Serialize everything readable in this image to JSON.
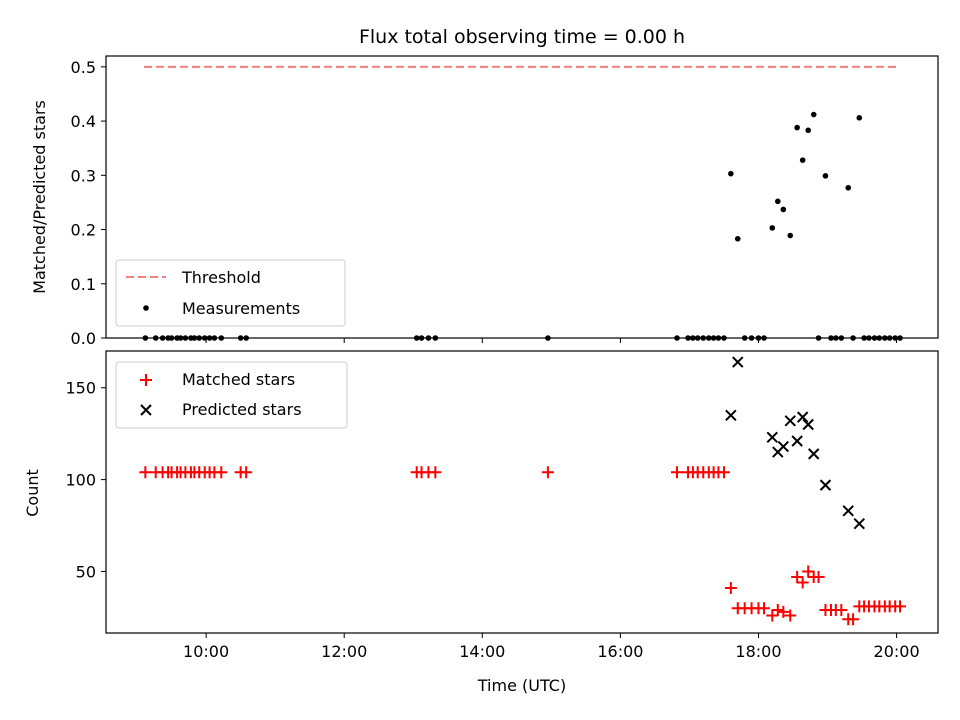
{
  "chart_data": {
    "type": "scatter",
    "title": "Flux total observing time = 0.00 h",
    "xlabel": "Time (UTC)",
    "xlim": [
      8.55,
      20.6
    ],
    "xticks": [
      {
        "value": 10,
        "label": "10:00"
      },
      {
        "value": 12,
        "label": "12:00"
      },
      {
        "value": 14,
        "label": "14:00"
      },
      {
        "value": 16,
        "label": "16:00"
      },
      {
        "value": 18,
        "label": "18:00"
      },
      {
        "value": 20,
        "label": "20:00"
      }
    ],
    "colors": {
      "threshold": "#f08080",
      "measurements": "#000000",
      "matched": "#ff0000",
      "predicted": "#000000"
    },
    "panels": [
      {
        "ylabel": "Matched/Predicted stars",
        "ylim": [
          0,
          0.52
        ],
        "yticks": [
          {
            "value": 0.0,
            "label": "0.0"
          },
          {
            "value": 0.1,
            "label": "0.1"
          },
          {
            "value": 0.2,
            "label": "0.2"
          },
          {
            "value": 0.3,
            "label": "0.3"
          },
          {
            "value": 0.4,
            "label": "0.4"
          },
          {
            "value": 0.5,
            "label": "0.5"
          }
        ],
        "legend_position": "lower-left",
        "series": [
          {
            "name": "Threshold",
            "kind": "dashed-line",
            "color": "#f08080",
            "x": [
              9.1,
              20.05
            ],
            "y": [
              0.5,
              0.5
            ]
          },
          {
            "name": "Measurements",
            "kind": "dot",
            "color": "#000000",
            "x": [
              9.12,
              9.27,
              9.37,
              9.45,
              9.5,
              9.58,
              9.63,
              9.7,
              9.78,
              9.83,
              9.9,
              9.98,
              10.05,
              10.12,
              10.22,
              10.5,
              10.58,
              13.05,
              13.12,
              13.22,
              13.32,
              14.95,
              16.82,
              16.98,
              17.05,
              17.12,
              17.2,
              17.28,
              17.35,
              17.42,
              17.5,
              17.6,
              17.7,
              17.8,
              17.9,
              18.0,
              18.08,
              18.2,
              18.28,
              18.36,
              18.46,
              18.56,
              18.64,
              18.72,
              18.8,
              18.87,
              18.97,
              19.05,
              19.12,
              19.2,
              19.3,
              19.37,
              19.46,
              19.53,
              19.6,
              19.68,
              19.75,
              19.83,
              19.9,
              19.98,
              20.05
            ],
            "y": [
              0,
              0,
              0,
              0,
              0,
              0,
              0,
              0,
              0,
              0,
              0,
              0,
              0,
              0,
              0,
              0,
              0,
              0,
              0,
              0,
              0,
              0,
              0,
              0,
              0,
              0,
              0,
              0,
              0,
              0,
              0,
              0.303,
              0.183,
              0,
              0,
              0,
              0,
              0.203,
              0.252,
              0.237,
              0.189,
              0.388,
              0.328,
              0.383,
              0.412,
              0,
              0.299,
              0,
              0,
              0,
              0.277,
              0,
              0.406,
              0,
              0,
              0,
              0,
              0,
              0,
              0,
              0
            ]
          }
        ]
      },
      {
        "ylabel": "Count",
        "ylim": [
          16.5,
          170
        ],
        "yticks": [
          {
            "value": 50,
            "label": "50"
          },
          {
            "value": 100,
            "label": "100"
          },
          {
            "value": 150,
            "label": "150"
          }
        ],
        "legend_position": "upper-left",
        "series": [
          {
            "name": "Matched stars",
            "kind": "plus",
            "color": "#ff0000",
            "x": [
              9.12,
              9.27,
              9.37,
              9.45,
              9.5,
              9.58,
              9.63,
              9.7,
              9.78,
              9.83,
              9.9,
              9.98,
              10.05,
              10.12,
              10.22,
              10.5,
              10.58,
              13.05,
              13.12,
              13.22,
              13.32,
              14.95,
              16.82,
              16.98,
              17.05,
              17.12,
              17.2,
              17.28,
              17.35,
              17.42,
              17.5,
              17.6,
              17.7,
              17.8,
              17.9,
              18.0,
              18.08,
              18.2,
              18.28,
              18.36,
              18.46,
              18.56,
              18.64,
              18.72,
              18.8,
              18.87,
              18.97,
              19.05,
              19.12,
              19.2,
              19.3,
              19.37,
              19.46,
              19.53,
              19.6,
              19.68,
              19.75,
              19.83,
              19.9,
              19.98,
              20.05
            ],
            "y": [
              104,
              104,
              104,
              104,
              104,
              104,
              104,
              104,
              104,
              104,
              104,
              104,
              104,
              104,
              104,
              104,
              104,
              104,
              104,
              104,
              104,
              104,
              104,
              104,
              104,
              104,
              104,
              104,
              104,
              104,
              104,
              41,
              30,
              30,
              30,
              30,
              30,
              26,
              29,
              28,
              26,
              47,
              44,
              50,
              47,
              47,
              29,
              29,
              29,
              29,
              24,
              24,
              31,
              31,
              31,
              31,
              31,
              31,
              31,
              31,
              31
            ]
          },
          {
            "name": "Predicted stars",
            "kind": "cross",
            "color": "#000000",
            "x": [
              17.6,
              17.7,
              18.2,
              18.28,
              18.36,
              18.46,
              18.56,
              18.64,
              18.72,
              18.8,
              18.97,
              19.3,
              19.46
            ],
            "y": [
              135,
              164,
              123,
              115,
              118,
              132,
              121,
              134,
              130,
              114,
              97,
              83,
              76
            ]
          }
        ]
      }
    ]
  }
}
